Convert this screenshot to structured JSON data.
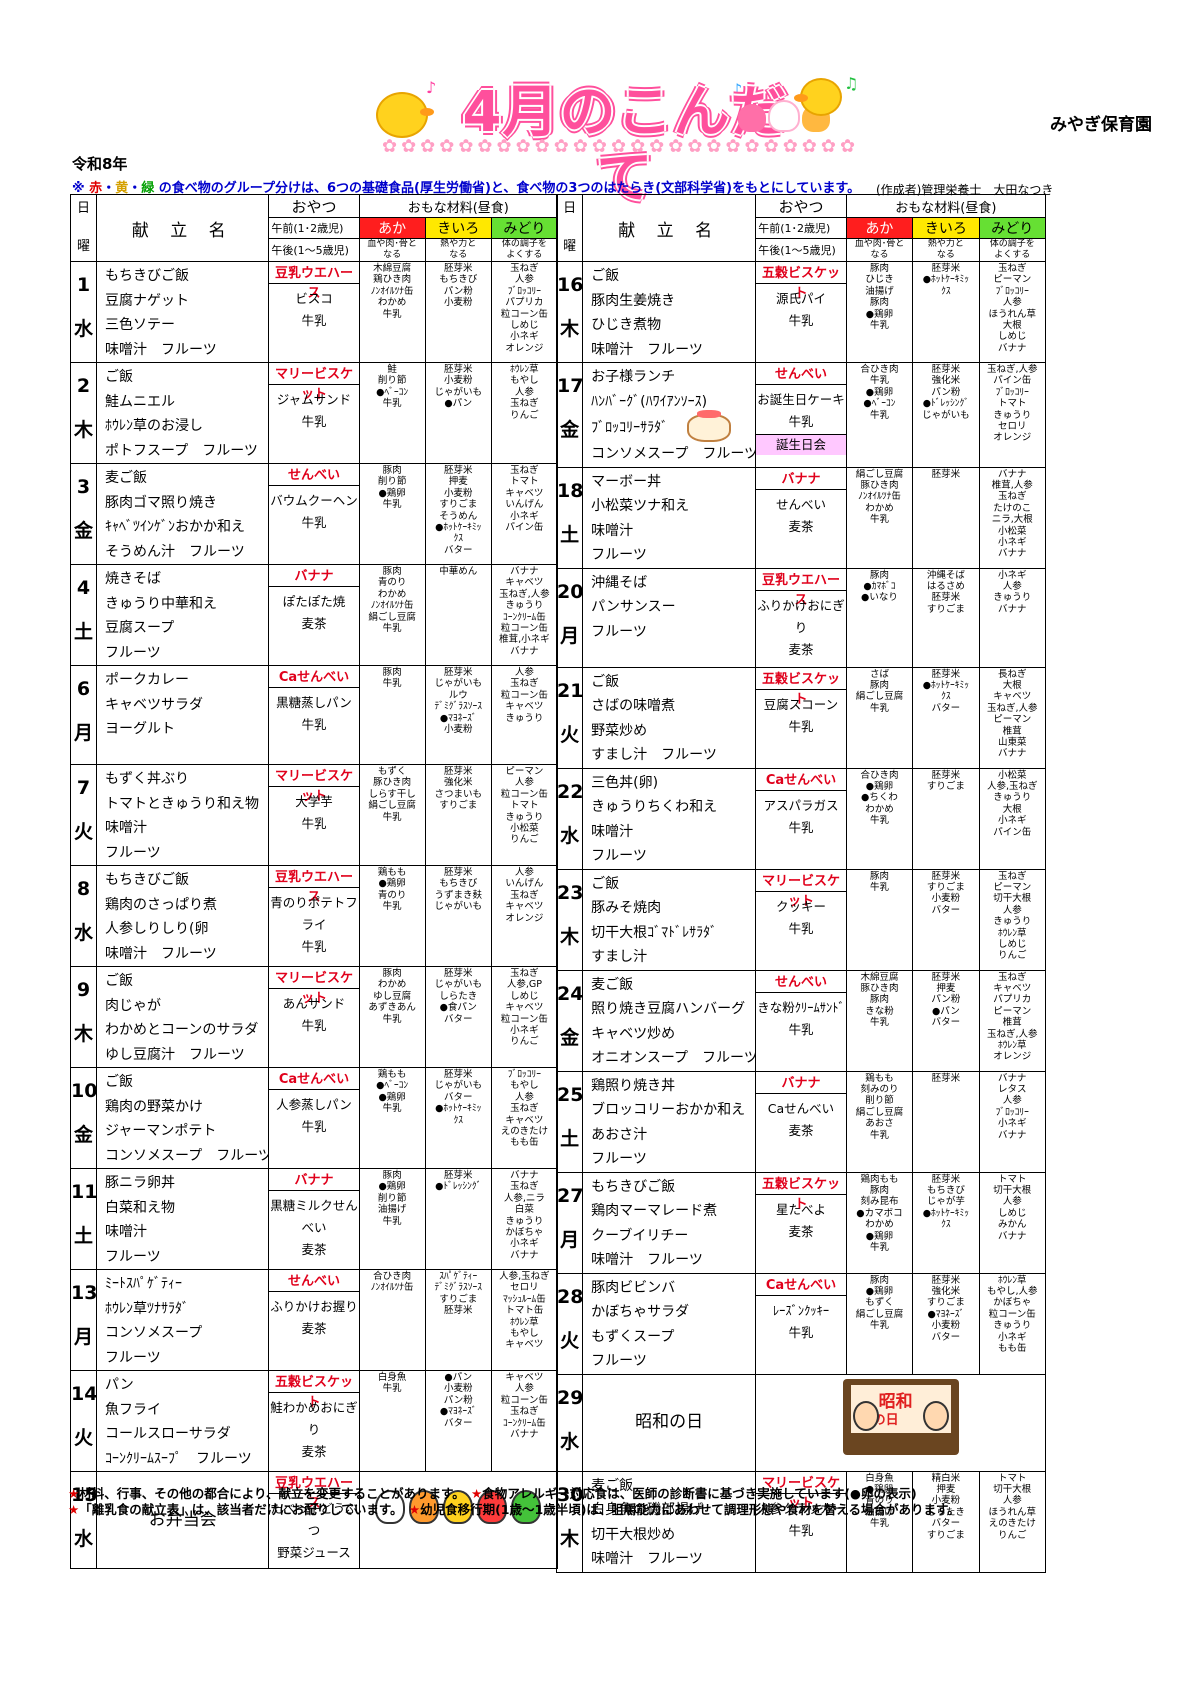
{
  "header": {
    "title": "4月のこんだて",
    "nursery": "みやぎ保育園",
    "year": "令和8年",
    "group_note_prefix": "※ ",
    "group_note_colors": [
      "赤",
      "・",
      "黄",
      "・",
      "緑"
    ],
    "group_note_rest": " の食べ物のグループ分けは、6つの基礎食品(厚生労働省)と、食べ物の3つのはたらき(文部科学省)をもとにしています。",
    "author": "(作成者)管理栄養士　大田なつき"
  },
  "columns": {
    "day": "日",
    "weekday": "曜",
    "dish_name": "献 立 名",
    "snack": "おやつ",
    "main_ingredients": "おもな材料(昼食)",
    "am_label": "午前(1･2歳児)",
    "pm_label": "午後(1～5歳児)",
    "red": "あか",
    "yellow": "きいろ",
    "green": "みどり",
    "red_desc": [
      "血や肉･骨と",
      "なる"
    ],
    "yellow_desc": [
      "熱や力と",
      "なる"
    ],
    "green_desc": [
      "体の調子を",
      "よくする"
    ]
  },
  "left_days": [
    {
      "day": "1",
      "wd": "水",
      "dishes": [
        "もちきびご飯",
        "豆腐ナゲット",
        "三色ソテー",
        "味噌汁　フルーツ"
      ],
      "am": "豆乳ウエハース",
      "pm": [
        "ビスコ",
        "牛乳"
      ],
      "red": [
        "木綿豆腐",
        "鶏ひき肉",
        "ﾉﾝｵｲﾙﾂﾅ缶",
        "わかめ",
        "牛乳"
      ],
      "yellow": [
        "胚芽米",
        "もちきび",
        "パン粉",
        "小麦粉"
      ],
      "green": [
        "玉ねぎ",
        "人参",
        "ﾌﾞﾛｯｺﾘｰ",
        "パプリカ",
        "粒コーン缶",
        "しめじ",
        "小ネギ",
        "オレンジ"
      ]
    },
    {
      "day": "2",
      "wd": "木",
      "dishes": [
        "ご飯",
        "鮭ムニエル",
        "ﾎｳﾚﾝ草のお浸し",
        "ポトフスープ　フルーツ"
      ],
      "am": "マリービスケット",
      "pm": [
        "ジャムサンド",
        "牛乳"
      ],
      "red": [
        "鮭",
        "削り節",
        "●ﾍﾞｰｺﾝ",
        "牛乳"
      ],
      "yellow": [
        "胚芽米",
        "小麦粉",
        "じゃがいも",
        "●パン"
      ],
      "green": [
        "ﾎｳﾚﾝ草",
        "もやし",
        "人参",
        "玉ねぎ",
        "りんご"
      ]
    },
    {
      "day": "3",
      "wd": "金",
      "dishes": [
        "麦ご飯",
        "豚肉ゴマ照り焼き",
        "ｷｬﾍﾞﾂｲﾝｹﾞﾝおかか和え",
        "そうめん汁　フルーツ"
      ],
      "am": "せんべい",
      "pm": [
        "バウムクーヘン",
        "牛乳"
      ],
      "red": [
        "豚肉",
        "削り節",
        "●鶏卵",
        "牛乳"
      ],
      "yellow": [
        "胚芽米",
        "押麦",
        "小麦粉",
        "すりごま",
        "そうめん",
        "●ﾎｯﾄｹｰｷﾐｯ",
        "ｸｽ",
        "バター"
      ],
      "green": [
        "玉ねぎ",
        "トマト",
        "キャベツ",
        "いんげん",
        "小ネギ",
        "パイン缶"
      ]
    },
    {
      "day": "4",
      "wd": "土",
      "dishes": [
        "焼きそば",
        "きゅうり中華和え",
        "豆腐スープ",
        "フルーツ"
      ],
      "am": "バナナ",
      "pm": [
        "ぽたぽた焼",
        "麦茶"
      ],
      "red": [
        "豚肉",
        "青のり",
        "わかめ",
        "ﾉﾝｵｲﾙﾂﾅ缶",
        "絹ごし豆腐",
        "牛乳"
      ],
      "yellow": [
        "中華めん"
      ],
      "green": [
        "バナナ",
        "キャベツ",
        "玉ねぎ,人参",
        "きゅうり",
        "ｺｰﾝｸﾘｰﾑ缶",
        "粒コーン缶",
        "椎茸,小ネギ",
        "バナナ"
      ]
    },
    {
      "day": "6",
      "wd": "月",
      "dishes": [
        "ポークカレー",
        "キャベツサラダ",
        "ヨーグルト"
      ],
      "am": "Caせんべい",
      "pm": [
        "黒糖蒸しパン",
        "牛乳"
      ],
      "red": [
        "豚肉",
        "牛乳"
      ],
      "yellow": [
        "胚芽米",
        "じゃがいも",
        "ルウ",
        "ﾃﾞﾐｸﾞﾗｽｿｰｽ",
        "●ﾏﾖﾈｰｽﾞ",
        "小麦粉"
      ],
      "green": [
        "人参",
        "玉ねぎ",
        "粒コーン缶",
        "キャベツ",
        "きゅうり"
      ]
    },
    {
      "day": "7",
      "wd": "火",
      "dishes": [
        "もずく丼ぶり",
        "トマトときゅうり和え物",
        "味噌汁",
        "フルーツ"
      ],
      "am": "マリービスケット",
      "pm": [
        "大学芋",
        "牛乳"
      ],
      "red": [
        "もずく",
        "豚ひき肉",
        "しらす干し",
        "絹ごし豆腐",
        "牛乳"
      ],
      "yellow": [
        "胚芽米",
        "強化米",
        "さつまいも",
        "すりごま"
      ],
      "green": [
        "ピーマン",
        "人参",
        "粒コーン缶",
        "トマト",
        "きゅうり",
        "小松菜",
        "りんご"
      ]
    },
    {
      "day": "8",
      "wd": "水",
      "dishes": [
        "もちきびご飯",
        "鶏肉のさっぱり煮",
        "人参しりしり(卵",
        "味噌汁　フルーツ"
      ],
      "am": "豆乳ウエハース",
      "pm": [
        "青のりポテトフライ",
        "牛乳"
      ],
      "red": [
        "鶏もも",
        "●鶏卵",
        "青のり",
        "牛乳"
      ],
      "yellow": [
        "胚芽米",
        "もちきび",
        "うずまき麸",
        "じゃがいも"
      ],
      "green": [
        "人参",
        "いんげん",
        "玉ねぎ",
        "キャベツ",
        "オレンジ"
      ]
    },
    {
      "day": "9",
      "wd": "木",
      "dishes": [
        "ご飯",
        "肉じゃが",
        "わかめとコーンのサラダ",
        "ゆし豆腐汁　フルーツ"
      ],
      "am": "マリービスケット",
      "pm": [
        "あんサンド",
        "牛乳"
      ],
      "red": [
        "豚肉",
        "わかめ",
        "ゆし豆腐",
        "あずきあん",
        "牛乳"
      ],
      "yellow": [
        "胚芽米",
        "じゃがいも",
        "しらたき",
        "●食パン",
        "バター"
      ],
      "green": [
        "玉ねぎ",
        "人参,GP",
        "しめじ",
        "キャベツ",
        "粒コーン缶",
        "小ネギ",
        "りんご"
      ]
    },
    {
      "day": "10",
      "wd": "金",
      "dishes": [
        "ご飯",
        "鶏肉の野菜かけ",
        "ジャーマンポテト",
        "コンソメスープ　フルーツ"
      ],
      "am": "Caせんべい",
      "pm": [
        "人参蒸しパン",
        "牛乳"
      ],
      "red": [
        "鶏もも",
        "●ﾍﾞｰｺﾝ",
        "●鶏卵",
        "牛乳"
      ],
      "yellow": [
        "胚芽米",
        "じゃがいも",
        "バター",
        "●ﾎｯﾄｹｰｷﾐｯ",
        "ｸｽ"
      ],
      "green": [
        "ﾌﾞﾛｯｺﾘｰ",
        "もやし",
        "人参",
        "玉ねぎ",
        "キャベツ",
        "えのきたけ",
        "もも缶"
      ]
    },
    {
      "day": "11",
      "wd": "土",
      "dishes": [
        "豚ニラ卵丼",
        "白菜和え物",
        "味噌汁",
        "フルーツ"
      ],
      "am": "バナナ",
      "pm": [
        "黒糖ミルクせんべい",
        "麦茶"
      ],
      "red": [
        "豚肉",
        "●鶏卵",
        "削り節",
        "油揚げ",
        "牛乳"
      ],
      "yellow": [
        "胚芽米",
        "●ﾄﾞﾚｯｼﾝｸﾞ"
      ],
      "green": [
        "バナナ",
        "玉ねぎ",
        "人参,ニラ",
        "白菜",
        "きゅうり",
        "かぼちゃ",
        "小ネギ",
        "バナナ"
      ]
    },
    {
      "day": "13",
      "wd": "月",
      "dishes": [
        "ﾐｰﾄｽﾊﾟｹﾞﾃｨｰ",
        "ﾎｳﾚﾝ草ﾂﾅｻﾗﾀﾞ",
        "コンソメスープ",
        "フルーツ"
      ],
      "am": "せんべい",
      "pm": [
        "ふりかけお握り",
        "麦茶"
      ],
      "red": [
        "合ひき肉",
        "ﾉﾝｵｲﾙﾂﾅ缶"
      ],
      "yellow": [
        "ｽﾊﾟｹﾞﾃｨｰ",
        "ﾃﾞﾐｸﾞﾗｽｿｰｽ",
        "すりごま",
        "胚芽米"
      ],
      "green": [
        "人参,玉ねぎ",
        "セロリ",
        "ﾏｯｼｭﾙｰﾑ缶",
        "トマト缶",
        "ﾎｳﾚﾝ草",
        "もやし",
        "キャベツ"
      ]
    },
    {
      "day": "14",
      "wd": "火",
      "dishes": [
        "パン",
        "魚フライ",
        "コールスローサラダ",
        "ｺｰﾝｸﾘｰﾑｽｰﾌﾟ　フルーツ"
      ],
      "am": "五穀ビスケット",
      "pm": [
        "鮭わかめおにぎり",
        "麦茶"
      ],
      "red": [
        "白身魚",
        "牛乳"
      ],
      "yellow": [
        "●パン",
        "小麦粉",
        "パン粉",
        "●ﾏﾖﾈｰｽﾞ",
        "バター"
      ],
      "green": [
        "キャベツ",
        "人参",
        "粒コーン缶",
        "玉ねぎ",
        "ｺｰﾝｸﾘｰﾑ缶",
        "バナナ"
      ]
    },
    {
      "day": "15",
      "wd": "水",
      "event": "お弁当会",
      "am": "豆乳ウエハース",
      "pm": [
        "たべっ子どうぶつ",
        "野菜ジュース"
      ]
    }
  ],
  "right_days": [
    {
      "day": "16",
      "wd": "木",
      "dishes": [
        "ご飯",
        "豚肉生姜焼き",
        "ひじき煮物",
        "味噌汁　フルーツ"
      ],
      "am": "五穀ビスケット",
      "pm": [
        "源氏パイ",
        "牛乳"
      ],
      "red": [
        "豚肉",
        "ひじき",
        "油揚げ",
        "豚肉",
        "●鶏卵",
        "牛乳"
      ],
      "yellow": [
        "胚芽米",
        "●ﾎｯﾄｹｰｷﾐｯ",
        "ｸｽ"
      ],
      "green": [
        "玉ねぎ",
        "ピーマン",
        "ﾌﾞﾛｯｺﾘｰ",
        "人参",
        "ほうれん草",
        "大根",
        "しめじ",
        "バナナ"
      ]
    },
    {
      "day": "17",
      "wd": "金",
      "dishes": [
        "お子様ランチ",
        "ﾊﾝﾊﾞｰｸﾞ(ﾊﾜｲｱﾝｿｰｽ)",
        "ﾌﾞﾛｯｺﾘｰｻﾗﾀﾞ",
        "コンソメスープ　フルーツ"
      ],
      "am": "せんべい",
      "pm": [
        "お誕生日ケーキ",
        "牛乳"
      ],
      "tag": "誕生日会",
      "red": [
        "合ひき肉",
        "牛乳",
        "●鶏卵",
        "●ﾍﾞｰｺﾝ",
        "牛乳"
      ],
      "yellow": [
        "胚芽米",
        "強化米",
        "パン粉",
        "●ﾄﾞﾚｯｼﾝｸﾞ",
        "じゃがいも"
      ],
      "green": [
        "玉ねぎ,人参",
        "パイン缶",
        "ﾌﾞﾛｯｺﾘｰ",
        "トマト",
        "きゅうり",
        "セロリ",
        "オレンジ"
      ]
    },
    {
      "day": "18",
      "wd": "土",
      "dishes": [
        "マーボー丼",
        "小松菜ツナ和え",
        "味噌汁",
        "フルーツ"
      ],
      "am": "バナナ",
      "pm": [
        "せんべい",
        "麦茶"
      ],
      "red": [
        "絹ごし豆腐",
        "豚ひき肉",
        "ﾉﾝｵｲﾙﾂﾅ缶",
        "わかめ",
        "牛乳"
      ],
      "yellow": [
        "胚芽米"
      ],
      "green": [
        "バナナ",
        "椎茸,人参",
        "玉ねぎ",
        "たけのこ",
        "ニラ,大根",
        "小松菜",
        "小ネギ",
        "バナナ"
      ]
    },
    {
      "day": "20",
      "wd": "月",
      "dishes": [
        "沖縄そば",
        "パンサンスー",
        "フルーツ"
      ],
      "am": "豆乳ウエハース",
      "pm": [
        "ふりかけおにぎり",
        "麦茶"
      ],
      "red": [
        "豚肉",
        "●ｶﾏﾎﾞｺ",
        "●いなり"
      ],
      "yellow": [
        "沖縄そば",
        "はるさめ",
        "胚芽米",
        "すりごま"
      ],
      "green": [
        "小ネギ",
        "人参",
        "きゅうり",
        "バナナ"
      ]
    },
    {
      "day": "21",
      "wd": "火",
      "dishes": [
        "ご飯",
        "さばの味噌煮",
        "野菜炒め",
        "すまし汁　フルーツ"
      ],
      "am": "五穀ビスケット",
      "pm": [
        "豆腐スコーン",
        "牛乳"
      ],
      "red": [
        "さば",
        "豚肉",
        "絹ごし豆腐",
        "牛乳"
      ],
      "yellow": [
        "胚芽米",
        "●ﾎｯﾄｹｰｷﾐｯ",
        "ｸｽ",
        "バター"
      ],
      "green": [
        "長ねぎ",
        "大根",
        "キャベツ",
        "玉ねぎ,人参",
        "ピーマン",
        "椎茸",
        "山東菜",
        "バナナ"
      ]
    },
    {
      "day": "22",
      "wd": "水",
      "dishes": [
        "三色丼(卵)",
        "きゅうりちくわ和え",
        "味噌汁",
        "フルーツ"
      ],
      "am": "Caせんべい",
      "pm": [
        "アスパラガス",
        "牛乳"
      ],
      "red": [
        "合ひき肉",
        "●鶏卵",
        "●ちくわ",
        "わかめ",
        "牛乳"
      ],
      "yellow": [
        "胚芽米",
        "すりごま"
      ],
      "green": [
        "小松菜",
        "人参,玉ねぎ",
        "きゅうり",
        "大根",
        "小ネギ",
        "パイン缶"
      ]
    },
    {
      "day": "23",
      "wd": "木",
      "dishes": [
        "ご飯",
        "豚みそ焼肉",
        "切干大根ｺﾞﾏﾄﾞﾚｻﾗﾀﾞ",
        "すまし汁"
      ],
      "am": "マリービスケット",
      "pm": [
        "クッキー",
        "牛乳"
      ],
      "red": [
        "豚肉",
        "牛乳"
      ],
      "yellow": [
        "胚芽米",
        "すりごま",
        "小麦粉",
        "バター"
      ],
      "green": [
        "玉ねぎ",
        "ピーマン",
        "切干大根",
        "人参",
        "きゅうり",
        "ﾎｳﾚﾝ草",
        "しめじ",
        "りんご"
      ]
    },
    {
      "day": "24",
      "wd": "金",
      "dishes": [
        "麦ご飯",
        "照り焼き豆腐ハンバーグ",
        "キャベツ炒め",
        "オニオンスープ　フルーツ"
      ],
      "am": "せんべい",
      "pm": [
        "きな粉ｸﾘｰﾑｻﾝﾄﾞ",
        "牛乳"
      ],
      "red": [
        "木綿豆腐",
        "豚ひき肉",
        "豚肉",
        "きな粉",
        "牛乳"
      ],
      "yellow": [
        "胚芽米",
        "押麦",
        "パン粉",
        "●パン",
        "バター"
      ],
      "green": [
        "玉ねぎ",
        "キャベツ",
        "パプリカ",
        "ピーマン",
        "椎茸",
        "玉ねぎ,人参",
        "ﾎｳﾚﾝ草",
        "オレンジ"
      ]
    },
    {
      "day": "25",
      "wd": "土",
      "dishes": [
        "鶏照り焼き丼",
        "ブロッコリーおかか和え",
        "あおさ汁",
        "フルーツ"
      ],
      "am": "バナナ",
      "pm": [
        "Caせんべい",
        "麦茶"
      ],
      "red": [
        "鶏もも",
        "刻みのり",
        "削り節",
        "絹ごし豆腐",
        "あおさ",
        "牛乳"
      ],
      "yellow": [
        "胚芽米"
      ],
      "green": [
        "バナナ",
        "レタス",
        "人参",
        "ﾌﾞﾛｯｺﾘｰ",
        "小ネギ",
        "バナナ"
      ]
    },
    {
      "day": "27",
      "wd": "月",
      "dishes": [
        "もちきびご飯",
        "鶏肉マーマレード煮",
        "クーブイリチー",
        "味噌汁　フルーツ"
      ],
      "am": "五穀ビスケット",
      "pm": [
        "星たべよ",
        "麦茶"
      ],
      "red": [
        "鶏肉もも",
        "豚肉",
        "刻み昆布",
        "●カマボコ",
        "わかめ",
        "●鶏卵",
        "牛乳"
      ],
      "yellow": [
        "胚芽米",
        "もちきび",
        "じゃが芋",
        "●ﾎｯﾄｹｰｷﾐｯ",
        "ｸｽ"
      ],
      "green": [
        "トマト",
        "切干大根",
        "人参",
        "しめじ",
        "みかん",
        "バナナ"
      ]
    },
    {
      "day": "28",
      "wd": "火",
      "dishes": [
        "豚肉ビビンバ",
        "かぼちゃサラダ",
        "もずくスープ",
        "フルーツ"
      ],
      "am": "Caせんべい",
      "pm": [
        "ﾚｰｽﾞﾝｸｯｷｰ",
        "牛乳"
      ],
      "red": [
        "豚肉",
        "●鶏卵",
        "もずく",
        "絹ごし豆腐",
        "牛乳"
      ],
      "yellow": [
        "胚芽米",
        "強化米",
        "すりごま",
        "●ﾏﾖﾈｰｽﾞ",
        "小麦粉",
        "バター"
      ],
      "green": [
        "ﾎｳﾚﾝ草",
        "もやし,人参",
        "かぼちゃ",
        "粒コーン缶",
        "きゅうり",
        "小ネギ",
        "もも缶"
      ]
    },
    {
      "day": "29",
      "wd": "水",
      "event": "昭和の日",
      "picture_text": [
        "昭和",
        "の日"
      ]
    },
    {
      "day": "30",
      "wd": "木",
      "dishes": [
        "麦ご飯",
        "白身魚の磯部揚げ",
        "切干大根炒め",
        "味噌汁　フルーツ"
      ],
      "am": "マリービスケット",
      "pm": [
        "人参クラッカー",
        "牛乳"
      ],
      "red": [
        "白身魚",
        "●鶏卵",
        "青のり",
        "油揚げ",
        "牛乳"
      ],
      "yellow": [
        "精白米",
        "押麦",
        "小麦粉",
        "しらたき",
        "バター",
        "すりごま"
      ],
      "green": [
        "トマト",
        "切干大根",
        "人参",
        "ほうれん草",
        "えのきたけ",
        "りんご"
      ]
    }
  ],
  "footer": {
    "line1": "材料、行事、その他の都合により、献立を変更することがあります。",
    "line1b": "食物アレルギー対応食は、医師の診断書に基づき実施しています(●卵の表示)",
    "line2": "「離乳食の献立表」は、該当者だけにお配りしています。",
    "line2b": "幼児食移行期(1歳～1歳半頃)は、咀嚼能力にあわせて調理形態や食材を替える場合があります。",
    "star": "★"
  }
}
